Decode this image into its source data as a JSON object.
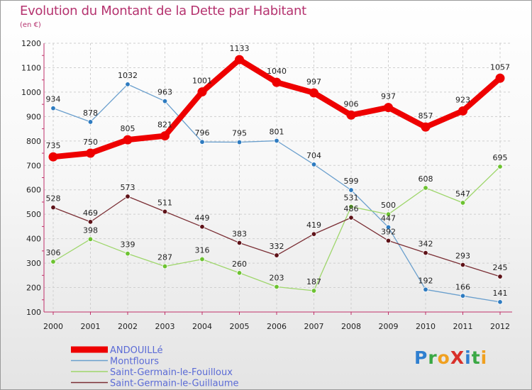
{
  "title": "Evolution du Montant de la Dette par Habitant",
  "subtitle": "(en €)",
  "logo": {
    "text": "ProXiti",
    "letters": [
      {
        "ch": "P",
        "color": "#2f7fd0"
      },
      {
        "ch": "r",
        "color": "#3aa844"
      },
      {
        "ch": "o",
        "color": "#f0a020"
      },
      {
        "ch": "X",
        "color": "#d8302a"
      },
      {
        "ch": "i",
        "color": "#2f7fd0"
      },
      {
        "ch": "t",
        "color": "#3aa844"
      },
      {
        "ch": "i",
        "color": "#f0a020"
      }
    ]
  },
  "chart_data": {
    "type": "line",
    "x": [
      "2000",
      "2001",
      "2002",
      "2003",
      "2004",
      "2005",
      "2006",
      "2007",
      "2008",
      "2009",
      "2010",
      "2011",
      "2012"
    ],
    "ylim": [
      100,
      1200
    ],
    "yticks": [
      100,
      200,
      300,
      400,
      500,
      600,
      700,
      800,
      900,
      1000,
      1100,
      1200
    ],
    "grid": true,
    "legend_position": "bottom",
    "series": [
      {
        "name": "Montflours",
        "color": "#6a9fcd",
        "marker": "#2e7bc0",
        "width": 1.3,
        "highlight": false,
        "values": [
          934,
          878,
          1032,
          963,
          796,
          795,
          801,
          704,
          599,
          447,
          192,
          166,
          141
        ],
        "labels": [
          "934",
          "878",
          "1032",
          "963",
          "796",
          "795",
          "801",
          "704",
          "599",
          "447",
          "192",
          "166",
          "141"
        ]
      },
      {
        "name": "Saint-Germain-le-Fouilloux",
        "color": "#9ed66b",
        "marker": "#6cc230",
        "width": 1.3,
        "highlight": false,
        "values": [
          306,
          398,
          339,
          287,
          316,
          260,
          203,
          187,
          531,
          500,
          608,
          547,
          695
        ],
        "labels": [
          "306",
          "398",
          "339",
          "287",
          "316",
          "260",
          "203",
          "187",
          "531",
          "500",
          "608",
          "547",
          "695"
        ]
      },
      {
        "name": "Saint-Germain-le-Guillaume",
        "color": "#7a2e34",
        "marker": "#5e1218",
        "width": 1.3,
        "highlight": false,
        "values": [
          528,
          469,
          573,
          511,
          449,
          383,
          332,
          419,
          486,
          392,
          342,
          293,
          245
        ],
        "labels": [
          "528",
          "469",
          "573",
          "511",
          "449",
          "383",
          "332",
          "419",
          "486",
          "392",
          "342",
          "293",
          "245"
        ]
      },
      {
        "name": "ANDOUILLé",
        "color": "#ee0000",
        "marker": "#ee0000",
        "width": 8,
        "highlight": true,
        "values": [
          735,
          750,
          805,
          821,
          1001,
          1133,
          1040,
          997,
          906,
          937,
          857,
          923,
          1057
        ],
        "labels": [
          "735",
          "750",
          "805",
          "821",
          "1001",
          "1133",
          "1040",
          "997",
          "906",
          "937",
          "857",
          "923",
          "1057"
        ]
      }
    ],
    "legend": [
      {
        "name": "ANDOUILLé",
        "color": "#ee0000",
        "text_color": "#5b6bd6"
      },
      {
        "name": "Montflours",
        "color": "#6a9fcd",
        "text_color": "#5b6bd6"
      },
      {
        "name": "Saint-Germain-le-Fouilloux",
        "color": "#9ed66b",
        "text_color": "#5b6bd6"
      },
      {
        "name": "Saint-Germain-le-Guillaume",
        "color": "#7a2e34",
        "text_color": "#5b6bd6"
      }
    ]
  }
}
